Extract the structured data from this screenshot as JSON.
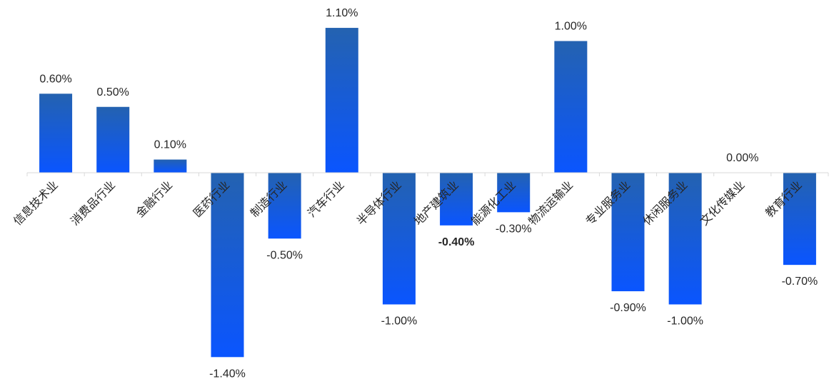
{
  "chart_data": {
    "type": "bar",
    "title": "",
    "xlabel": "",
    "ylabel": "",
    "ylim": [
      -1.5,
      1.2
    ],
    "grid": false,
    "legend": "none",
    "categories": [
      "信息技术业",
      "消费品行业",
      "金融行业",
      "医药行业",
      "制造行业",
      "汽车行业",
      "半导体行业",
      "地产建筑业",
      "能源化工业",
      "物流运输业",
      "专业服务业",
      "休闲服务业",
      "文化传媒业",
      "教育行业"
    ],
    "values": [
      0.6,
      0.5,
      0.1,
      -1.4,
      -0.5,
      1.1,
      -1.0,
      -0.4,
      -0.3,
      1.0,
      -0.9,
      -1.0,
      0.0,
      -0.7
    ],
    "data_labels": [
      "0.60%",
      "0.50%",
      "0.10%",
      "-1.40%",
      "-0.50%",
      "1.10%",
      "-1.00%",
      "-0.40%",
      "-0.30%",
      "1.00%",
      "-0.90%",
      "-1.00%",
      "0.00%",
      "-0.70%"
    ],
    "emphasized_labels": [
      "-0.40%"
    ],
    "colors": {
      "bar_top": "#2462B0",
      "bar_bottom": "#0A55FF",
      "axis": "#D9D9D9",
      "text": "#262626"
    }
  }
}
